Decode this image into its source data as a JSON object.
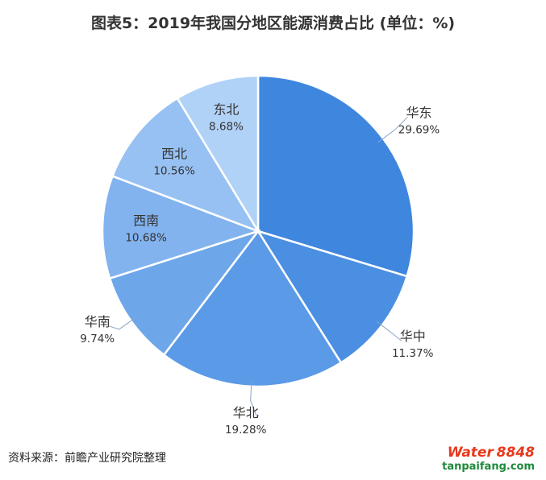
{
  "title": "图表5：2019年我国分地区能源消费占比 (单位：%)",
  "source": "资料来源：前瞻产业研究院整理",
  "watermark": {
    "brand": "Water",
    "brand_number": "8848",
    "site": "tanpaifang.com"
  },
  "colors": {
    "slices": [
      "#3f86df",
      "#4b8fe2",
      "#5b9ae6",
      "#6ea6ea",
      "#82b3ee",
      "#97c1f2",
      "#b1d2f7"
    ],
    "border": "#ffffff",
    "text": "#333333"
  },
  "chart_data": {
    "type": "pie",
    "title": "图表5：2019年我国分地区能源消费占比 (单位：%)",
    "categories": [
      "华东",
      "华中",
      "华北",
      "华南",
      "西南",
      "西北",
      "东北"
    ],
    "values": [
      29.69,
      11.37,
      19.28,
      9.74,
      10.68,
      10.56,
      8.68
    ],
    "value_labels": [
      "29.69%",
      "11.37%",
      "19.28%",
      "9.74%",
      "10.68%",
      "10.56%",
      "8.68%"
    ],
    "start_angle": "12 o'clock",
    "direction": "clockwise",
    "labels": "name and percent beside each slice"
  }
}
